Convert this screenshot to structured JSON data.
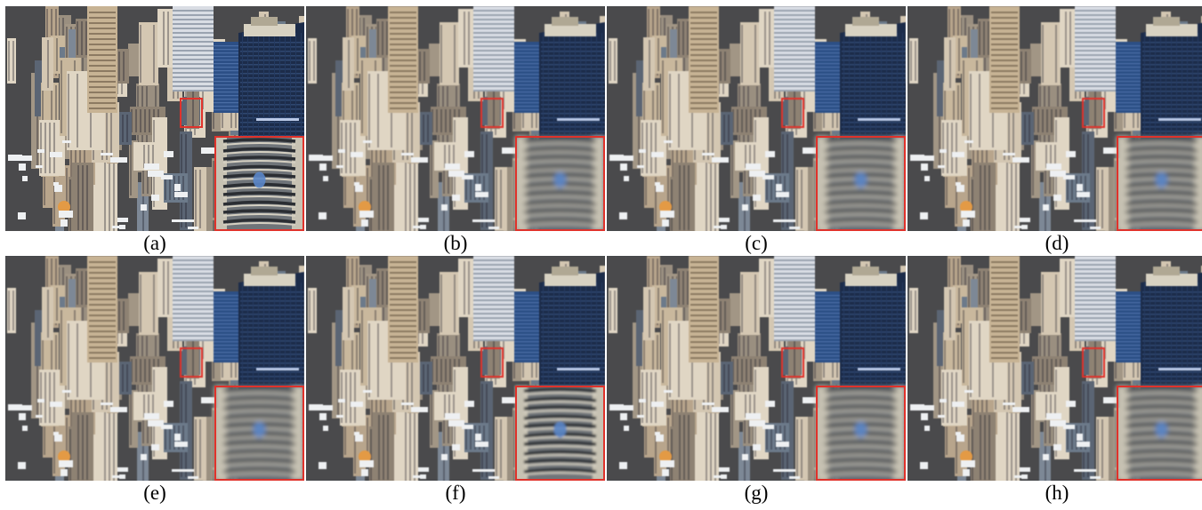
{
  "panels": [
    {
      "label": "(a)",
      "variant": "sharp"
    },
    {
      "label": "(b)",
      "variant": "blurred"
    },
    {
      "label": "(c)",
      "variant": "blurred"
    },
    {
      "label": "(d)",
      "variant": "blurred"
    },
    {
      "label": "(e)",
      "variant": "blurred"
    },
    {
      "label": "(f)",
      "variant": "sharpened"
    },
    {
      "label": "(g)",
      "variant": "blurred"
    },
    {
      "label": "(h)",
      "variant": "blurred"
    }
  ],
  "colors": {
    "highlight_box": "#e0322b",
    "sky_glass": "#2c4f86",
    "tower_dark": "#1c2c4a",
    "beige": "#c8b59a",
    "window_blue": "#5a86c8"
  }
}
